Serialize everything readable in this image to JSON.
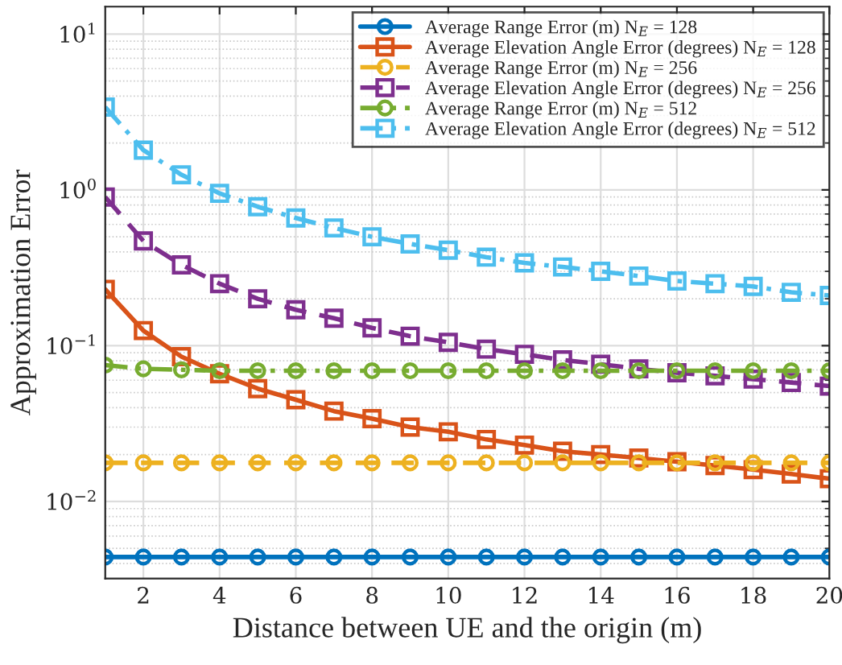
{
  "chart_data": {
    "type": "line",
    "xlabel": "Distance between UE and the origin (m)",
    "ylabel": "Approximation Error",
    "log": "y",
    "grid": true,
    "legend": "top right",
    "x": [
      1,
      2,
      3,
      4,
      5,
      6,
      7,
      8,
      9,
      10,
      11,
      12,
      13,
      14,
      15,
      16,
      17,
      18,
      19,
      20
    ],
    "xlim": [
      1,
      20
    ],
    "xticks": [
      2,
      4,
      6,
      8,
      10,
      12,
      14,
      16,
      18,
      20
    ],
    "ylim": [
      0.0032,
      15
    ],
    "yticks": [
      {
        "value": 0.01,
        "label": "10$^{−2}$"
      },
      {
        "value": 0.1,
        "label": "10$^{−1}$"
      },
      {
        "value": 1,
        "label": "10$^{0}$"
      },
      {
        "value": 10,
        "label": "10$^{1}$"
      }
    ],
    "series": [
      {
        "name": "Average Range Error (m) N$_{E}$ = 128",
        "color": "#0072bd",
        "marker": "circle",
        "line_style": "solid",
        "values": [
          0.0044,
          0.0044,
          0.0044,
          0.0044,
          0.0044,
          0.0044,
          0.0044,
          0.0044,
          0.0044,
          0.0044,
          0.0044,
          0.0044,
          0.0044,
          0.0044,
          0.0044,
          0.0044,
          0.0044,
          0.0044,
          0.0044,
          0.0044
        ]
      },
      {
        "name": "Average Elevation Angle Error (degrees) N$_{E}$ = 128",
        "color": "#d95319",
        "marker": "square",
        "line_style": "solid",
        "values": [
          0.23,
          0.125,
          0.085,
          0.066,
          0.053,
          0.045,
          0.038,
          0.034,
          0.03,
          0.028,
          0.025,
          0.023,
          0.021,
          0.02,
          0.019,
          0.018,
          0.017,
          0.016,
          0.015,
          0.014
        ]
      },
      {
        "name": "Average Range Error (m) N$_{E}$ = 256",
        "color": "#edb120",
        "marker": "circle",
        "line_style": "dashed",
        "values": [
          0.0177,
          0.0177,
          0.0177,
          0.0177,
          0.0177,
          0.0177,
          0.0177,
          0.0177,
          0.0177,
          0.0177,
          0.0177,
          0.0177,
          0.0177,
          0.0177,
          0.0177,
          0.0177,
          0.0177,
          0.0177,
          0.0177,
          0.0177
        ]
      },
      {
        "name": "Average Elevation Angle Error (degrees) N$_{E}$ = 256",
        "color": "#7e2f8e",
        "marker": "square",
        "line_style": "dashed",
        "values": [
          0.9,
          0.47,
          0.33,
          0.25,
          0.2,
          0.17,
          0.15,
          0.13,
          0.115,
          0.105,
          0.095,
          0.088,
          0.081,
          0.076,
          0.071,
          0.067,
          0.064,
          0.061,
          0.058,
          0.055
        ]
      },
      {
        "name": "Average Range Error (m) N$_{E}$ = 512",
        "color": "#77ac30",
        "marker": "circle",
        "line_style": "dashdot",
        "values": [
          0.075,
          0.071,
          0.07,
          0.069,
          0.069,
          0.069,
          0.069,
          0.069,
          0.069,
          0.069,
          0.069,
          0.069,
          0.069,
          0.069,
          0.069,
          0.069,
          0.069,
          0.069,
          0.069,
          0.069
        ]
      },
      {
        "name": "Average Elevation Angle Error (degrees) N$_{E}$ = 512",
        "color": "#4dbeee",
        "marker": "square",
        "line_style": "dashdot",
        "values": [
          3.4,
          1.8,
          1.25,
          0.95,
          0.78,
          0.66,
          0.57,
          0.5,
          0.45,
          0.41,
          0.37,
          0.34,
          0.32,
          0.3,
          0.28,
          0.26,
          0.25,
          0.24,
          0.22,
          0.21
        ]
      }
    ]
  }
}
